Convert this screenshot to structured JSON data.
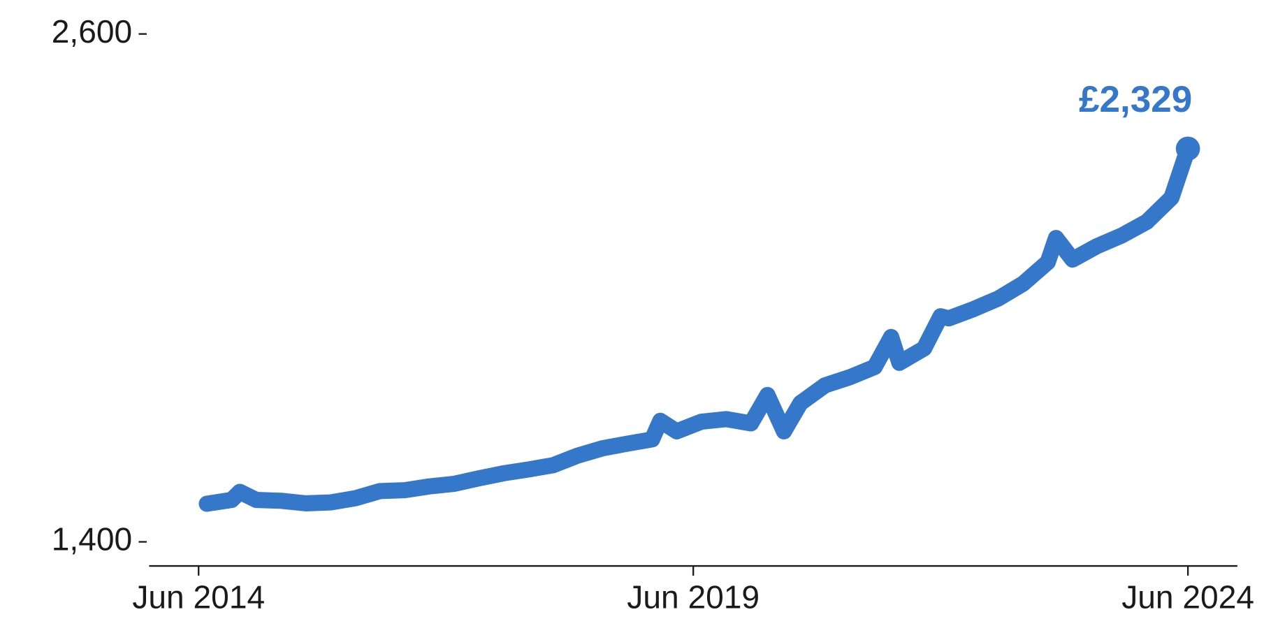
{
  "chart_data": {
    "type": "line",
    "x": [
      "2014-07",
      "2014-10",
      "2014-11",
      "2015-01",
      "2015-04",
      "2015-07",
      "2015-10",
      "2016-01",
      "2016-04",
      "2016-07",
      "2016-10",
      "2017-01",
      "2017-04",
      "2017-07",
      "2017-10",
      "2018-01",
      "2018-04",
      "2018-07",
      "2018-10",
      "2019-01",
      "2019-02",
      "2019-04",
      "2019-07",
      "2019-10",
      "2020-01",
      "2020-03",
      "2020-05",
      "2020-07",
      "2020-10",
      "2021-01",
      "2021-04",
      "2021-06",
      "2021-07",
      "2021-10",
      "2021-12",
      "2022-01",
      "2022-04",
      "2022-07",
      "2022-10",
      "2023-01",
      "2023-02",
      "2023-04",
      "2023-07",
      "2023-10",
      "2024-01",
      "2024-04",
      "2024-06"
    ],
    "values": [
      1490,
      1499,
      1518,
      1499,
      1497,
      1491,
      1493,
      1503,
      1520,
      1522,
      1531,
      1537,
      1550,
      1562,
      1571,
      1581,
      1604,
      1621,
      1632,
      1642,
      1686,
      1661,
      1684,
      1690,
      1680,
      1747,
      1661,
      1728,
      1770,
      1789,
      1813,
      1884,
      1823,
      1857,
      1933,
      1928,
      1950,
      1975,
      2010,
      2061,
      2118,
      2067,
      2099,
      2124,
      2156,
      2213,
      2329
    ],
    "color": "#3577c9",
    "end_label": "£2,329",
    "xlim": [
      "2013-12",
      "2024-12"
    ],
    "xticks": [
      {
        "value": "2014-06",
        "label": "Jun 2014"
      },
      {
        "value": "2019-06",
        "label": "Jun 2019"
      },
      {
        "value": "2024-06",
        "label": "Jun 2024"
      }
    ],
    "ylim": [
      1343,
      2600
    ],
    "yticks": [
      {
        "value": 1400,
        "label": "1,400"
      },
      {
        "value": 2600,
        "label": "2,600"
      }
    ],
    "grid": false
  }
}
